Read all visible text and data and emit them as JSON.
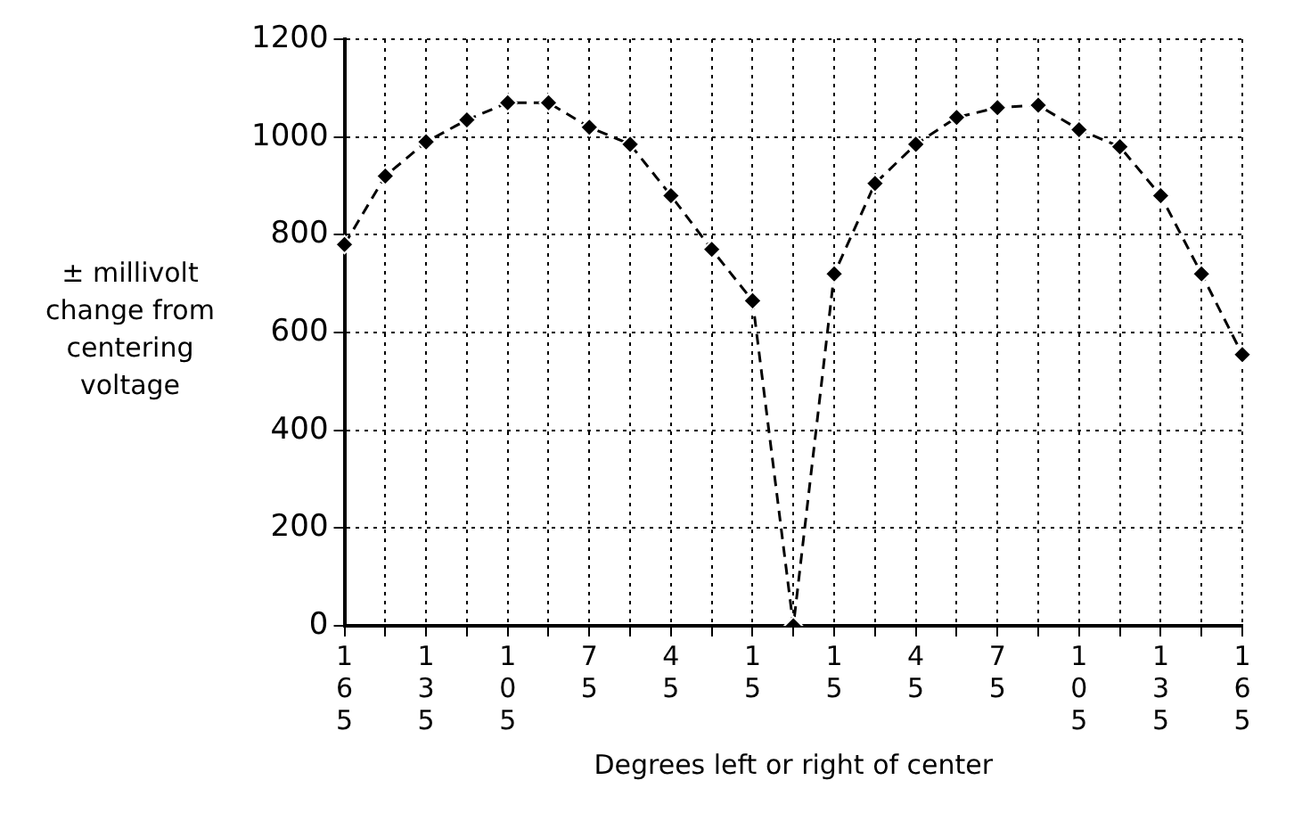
{
  "chart_data": {
    "type": "line",
    "xlabel": "Degrees left or right of center",
    "ylabel": "± millivolt change from centering voltage",
    "categories": [
      "165",
      null,
      "135",
      null,
      "105",
      null,
      "75",
      null,
      "45",
      null,
      "15",
      null,
      "15",
      null,
      "45",
      null,
      "75",
      null,
      "105",
      null,
      "135",
      null,
      "165"
    ],
    "series": [
      {
        "color": "#000000",
        "values": [
          780,
          920,
          990,
          1035,
          1070,
          1070,
          1020,
          985,
          880,
          770,
          665,
          0,
          720,
          905,
          985,
          1040,
          1060,
          1065,
          1015,
          980,
          880,
          720,
          555
        ]
      }
    ],
    "ylim": [
      0,
      1200
    ],
    "yticks": [
      0,
      200,
      400,
      600,
      800,
      1000,
      1200
    ],
    "grid": true,
    "legend": false,
    "marker": "diamond",
    "line_style": "dashed"
  }
}
